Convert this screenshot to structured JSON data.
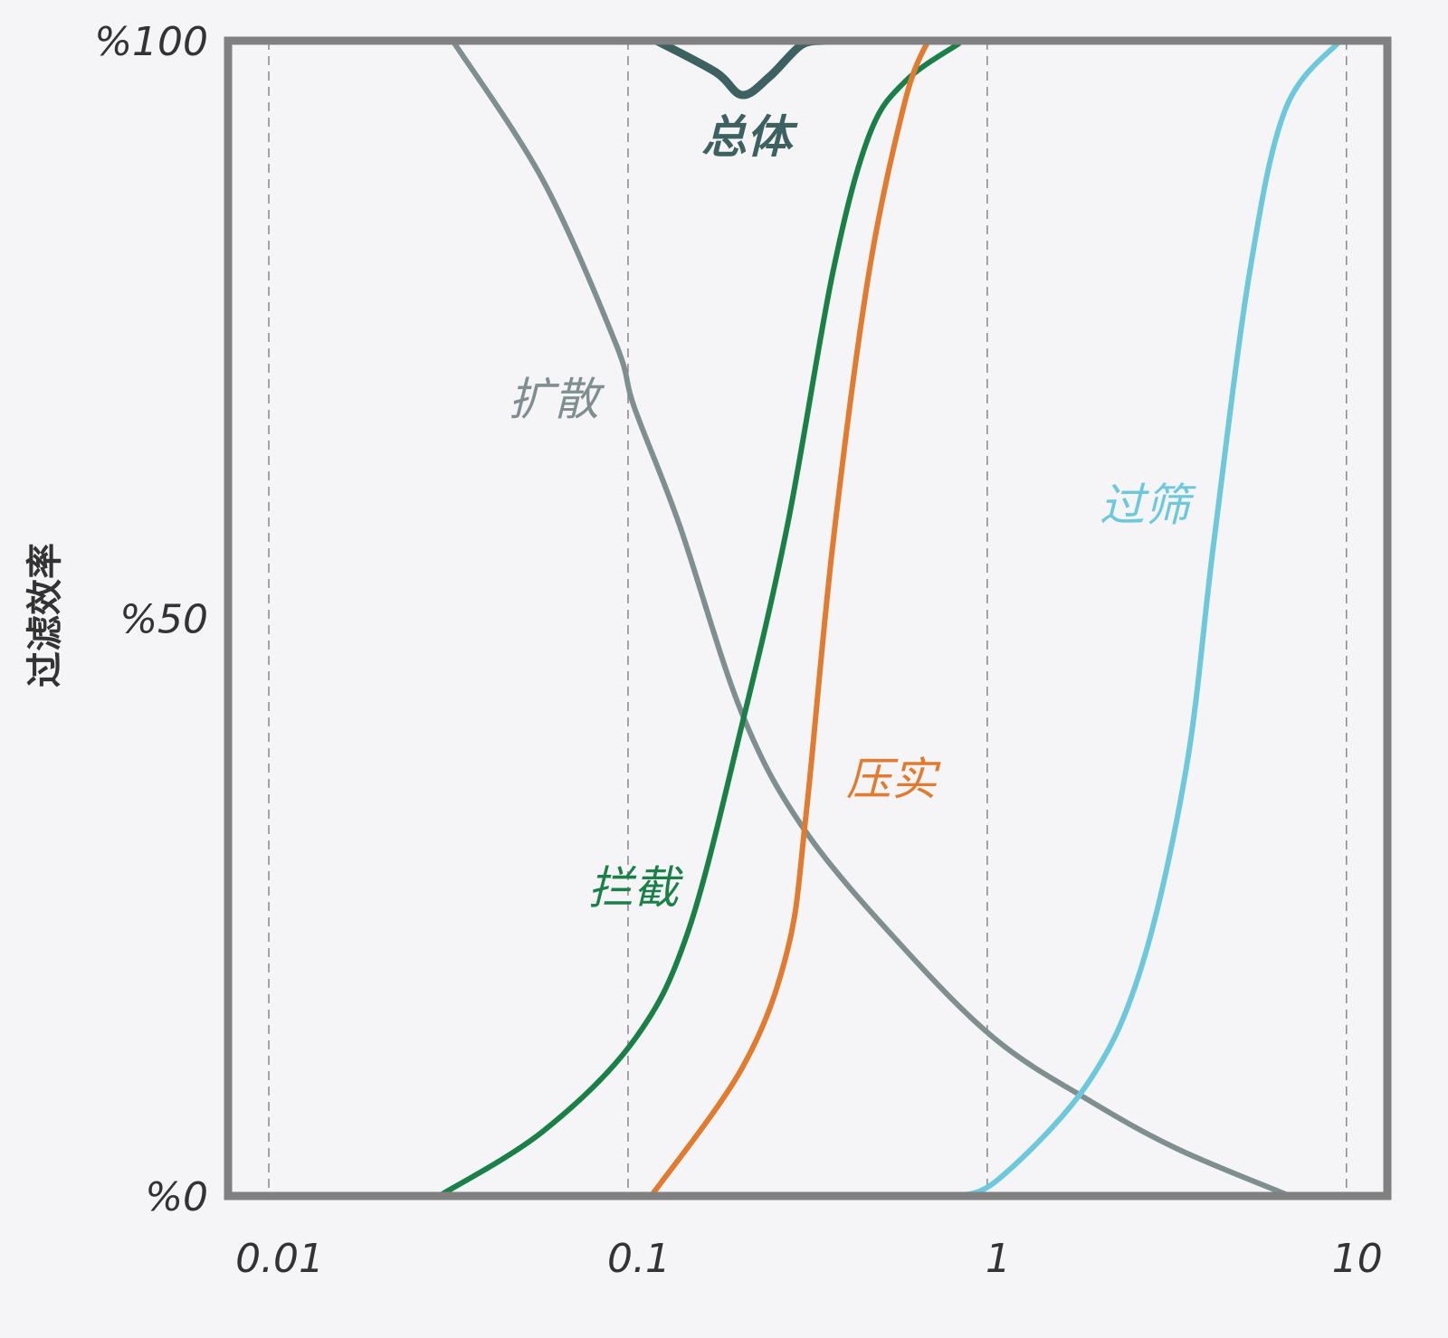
{
  "chart_data": {
    "type": "line",
    "y_label": "过滤效率",
    "xscale": "log",
    "xlim": [
      0.0077,
      13
    ],
    "ylim": [
      0,
      100
    ],
    "xticks": [
      0.01,
      0.1,
      1,
      10
    ],
    "yticks": [
      {
        "value": 0,
        "label": "%0"
      },
      {
        "value": 50,
        "label": "%50"
      },
      {
        "value": 100,
        "label": "%100"
      }
    ],
    "grid": true,
    "series": [
      {
        "name": "总体",
        "color": "#3d6060",
        "x": [
          0.12,
          0.175,
          0.208,
          0.248,
          0.303,
          0.351
        ],
        "values": [
          100,
          97.3,
          95.3,
          96.9,
          99.6,
          100
        ]
      },
      {
        "name": "扩散",
        "color": "#7f8f90",
        "x": [
          0.0325,
          0.058,
          0.0924,
          0.104,
          0.139,
          0.208,
          0.313,
          0.592,
          1.06,
          1.89,
          3.37,
          6.97
        ],
        "values": [
          100,
          87.9,
          73.8,
          68.3,
          58.1,
          41.7,
          31.5,
          21.3,
          13.5,
          8.4,
          4.1,
          0
        ]
      },
      {
        "name": "拦截",
        "color": "#1a8048",
        "x": [
          0.0298,
          0.058,
          0.104,
          0.147,
          0.208,
          0.278,
          0.372,
          0.469,
          0.592,
          0.838
        ],
        "values": [
          0,
          5.6,
          13.5,
          22.9,
          40.9,
          58.1,
          80,
          91.8,
          96.5,
          99.8
        ]
      },
      {
        "name": "压实",
        "color": "#e07b30",
        "x": [
          0.116,
          0.208,
          0.278,
          0.313,
          0.372,
          0.469,
          0.592,
          0.684
        ],
        "values": [
          0,
          11.1,
          21.3,
          33,
          56.5,
          80,
          94.9,
          100
        ]
      },
      {
        "name": "过筛",
        "color": "#6ec8dc",
        "x": [
          0.79,
          1.06,
          1.89,
          2.68,
          3.58,
          4.27,
          5.38,
          6.77,
          9.6
        ],
        "values": [
          0,
          1.3,
          9.6,
          19.7,
          37,
          56.5,
          80,
          94.1,
          100
        ]
      }
    ]
  }
}
